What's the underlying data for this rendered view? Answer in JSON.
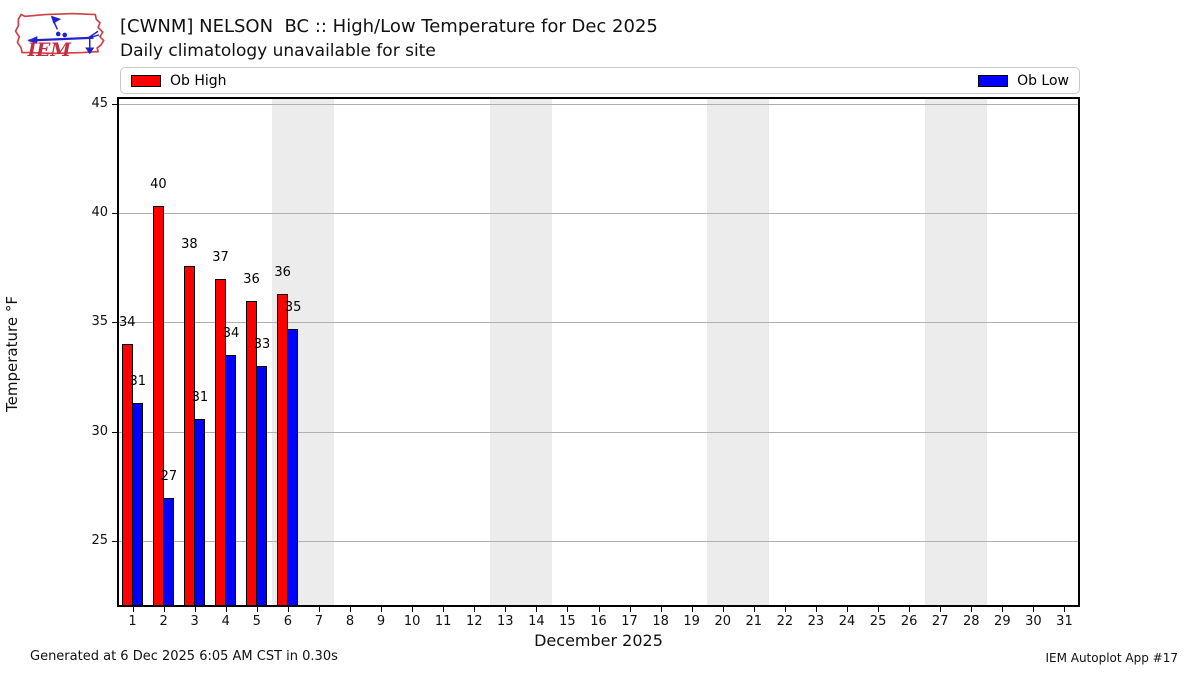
{
  "header": {
    "title": "[CWNM] NELSON  BC :: High/Low Temperature for Dec 2025",
    "subtitle": "Daily climatology unavailable for site",
    "logo_text": "IEM"
  },
  "legend": {
    "high_label": "Ob High",
    "low_label": "Ob Low"
  },
  "footer": {
    "generated": "Generated at 6 Dec 2025 6:05 AM CST in 0.30s",
    "app": "IEM Autoplot App #17"
  },
  "colors": {
    "high_bar": "#ff0000",
    "low_bar": "#0000ff",
    "weekend_band": "#ececec",
    "gridline": "#b0b0b0",
    "logo_red": "#c03040",
    "logo_blue": "#2323cc"
  },
  "chart_data": {
    "type": "bar",
    "title": "[CWNM] NELSON  BC :: High/Low Temperature for Dec 2025",
    "subtitle": "Daily climatology unavailable for site",
    "xlabel": "December 2025",
    "ylabel": "Temperature °F",
    "xlim": [
      0.5,
      31.5
    ],
    "ylim": [
      22.0,
      45.3
    ],
    "xticks": [
      1,
      2,
      3,
      4,
      5,
      6,
      7,
      8,
      9,
      10,
      11,
      12,
      13,
      14,
      15,
      16,
      17,
      18,
      19,
      20,
      21,
      22,
      23,
      24,
      25,
      26,
      27,
      28,
      29,
      30,
      31
    ],
    "yticks": [
      25,
      30,
      35,
      40,
      45
    ],
    "grid": "horizontal",
    "legend_position": "top",
    "weekend_bands": [
      [
        5.5,
        7.5
      ],
      [
        12.5,
        14.5
      ],
      [
        19.5,
        21.5
      ],
      [
        26.5,
        28.5
      ]
    ],
    "days_with_data": [
      1,
      2,
      3,
      4,
      5,
      6
    ],
    "series": [
      {
        "name": "Ob High",
        "color": "#ff0000",
        "values": [
          34.0,
          40.3,
          37.6,
          37.0,
          36.0,
          36.3
        ],
        "labels": [
          "34",
          "40",
          "38",
          "37",
          "36",
          "36"
        ]
      },
      {
        "name": "Ob Low",
        "color": "#0000ff",
        "values": [
          31.3,
          27.0,
          30.6,
          33.5,
          33.0,
          34.7
        ],
        "labels": [
          "31",
          "27",
          "31",
          "34",
          "33",
          "35"
        ]
      }
    ]
  }
}
